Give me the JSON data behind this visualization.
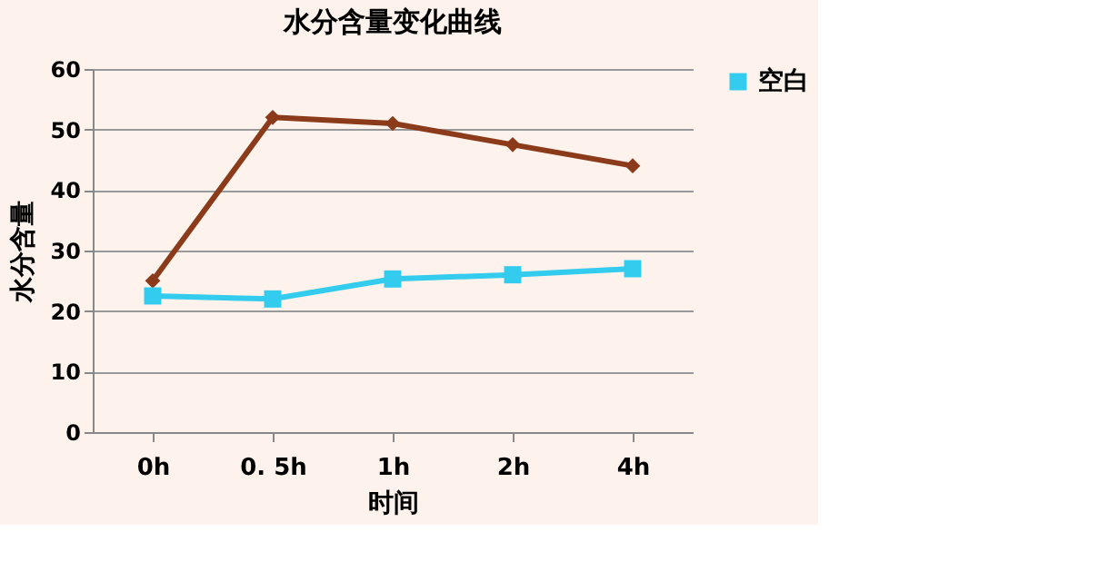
{
  "chart_data": {
    "type": "line",
    "title": "水分含量变化曲线",
    "xlabel": "时间",
    "ylabel": "水分含量",
    "categories": [
      "0h",
      "0. 5h",
      "1h",
      "2h",
      "4h"
    ],
    "series": [
      {
        "color": "#8b3a1a",
        "marker": "diamond",
        "values": [
          25,
          52,
          51,
          47.5,
          44
        ]
      },
      {
        "name": "空白",
        "color": "#33ccee",
        "marker": "square",
        "values": [
          22.5,
          22,
          25.3,
          26,
          27
        ]
      }
    ],
    "ylim": [
      0,
      60
    ],
    "yticks": [
      0,
      10,
      20,
      30,
      40,
      50,
      60
    ],
    "grid": "y",
    "legend": "right"
  }
}
